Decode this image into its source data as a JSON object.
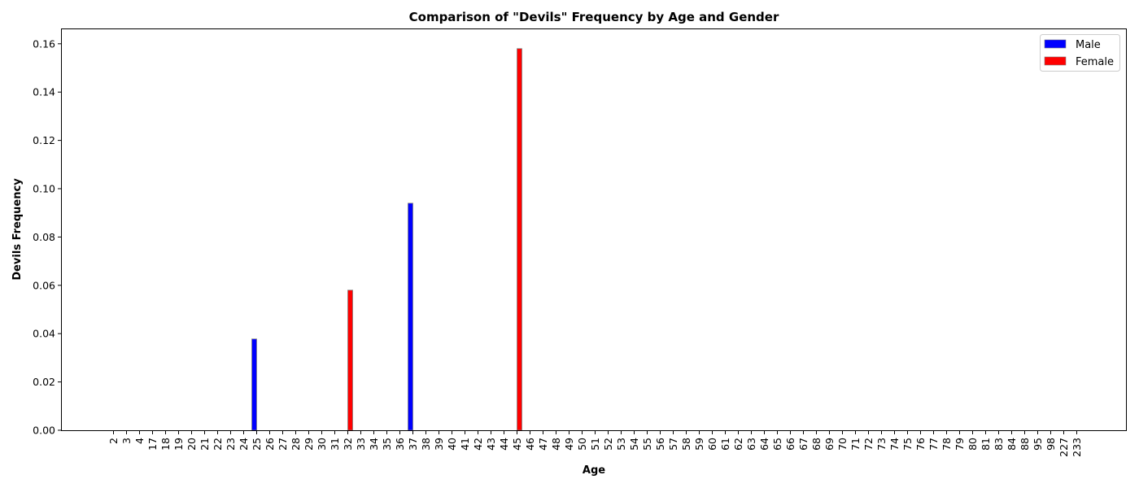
{
  "chart_data": {
    "type": "bar",
    "title": "Comparison of \"Devils\" Frequency by Age and Gender",
    "xlabel": "Age",
    "ylabel": "Devils Frequency",
    "ylim": [
      0,
      0.166
    ],
    "yticks": [
      "0.00",
      "0.02",
      "0.04",
      "0.06",
      "0.08",
      "0.10",
      "0.12",
      "0.14",
      "0.16"
    ],
    "grid": false,
    "legend_position": "top-right",
    "categories": [
      "2",
      "3",
      "4",
      "17",
      "18",
      "19",
      "20",
      "21",
      "22",
      "23",
      "24",
      "25",
      "26",
      "27",
      "28",
      "29",
      "30",
      "31",
      "32",
      "33",
      "34",
      "35",
      "36",
      "37",
      "38",
      "39",
      "40",
      "41",
      "42",
      "43",
      "44",
      "45",
      "46",
      "47",
      "48",
      "49",
      "50",
      "51",
      "52",
      "53",
      "54",
      "55",
      "56",
      "57",
      "58",
      "59",
      "60",
      "61",
      "62",
      "63",
      "64",
      "65",
      "66",
      "67",
      "68",
      "69",
      "70",
      "71",
      "72",
      "73",
      "74",
      "75",
      "76",
      "77",
      "78",
      "79",
      "80",
      "81",
      "83",
      "84",
      "88",
      "95",
      "98",
      "227",
      "233"
    ],
    "series": [
      {
        "name": "Male",
        "color": "#0000ff",
        "values": [
          0,
          0,
          0,
          0,
          0,
          0,
          0,
          0,
          0,
          0,
          0,
          0.0378,
          0,
          0,
          0,
          0,
          0,
          0,
          0,
          0,
          0,
          0,
          0,
          0.094,
          0,
          0,
          0,
          0,
          0,
          0,
          0,
          0,
          0,
          0,
          0,
          0,
          0,
          0,
          0,
          0,
          0,
          0,
          0,
          0,
          0,
          0,
          0,
          0,
          0,
          0,
          0,
          0,
          0,
          0,
          0,
          0,
          0,
          0,
          0,
          0,
          0,
          0,
          0,
          0,
          0,
          0,
          0,
          0,
          0,
          0,
          0,
          0,
          0,
          0,
          0
        ]
      },
      {
        "name": "Female",
        "color": "#ff0000",
        "values": [
          0,
          0,
          0,
          0,
          0,
          0,
          0,
          0,
          0,
          0,
          0,
          0,
          0,
          0,
          0,
          0,
          0,
          0,
          0.058,
          0,
          0,
          0,
          0,
          0,
          0,
          0,
          0,
          0,
          0,
          0,
          0,
          0.158,
          0,
          0,
          0,
          0,
          0,
          0,
          0,
          0,
          0,
          0,
          0,
          0,
          0,
          0,
          0,
          0,
          0,
          0,
          0,
          0,
          0,
          0,
          0,
          0,
          0,
          0,
          0,
          0,
          0,
          0,
          0,
          0,
          0,
          0,
          0,
          0,
          0,
          0,
          0,
          0,
          0,
          0,
          0
        ]
      }
    ]
  }
}
